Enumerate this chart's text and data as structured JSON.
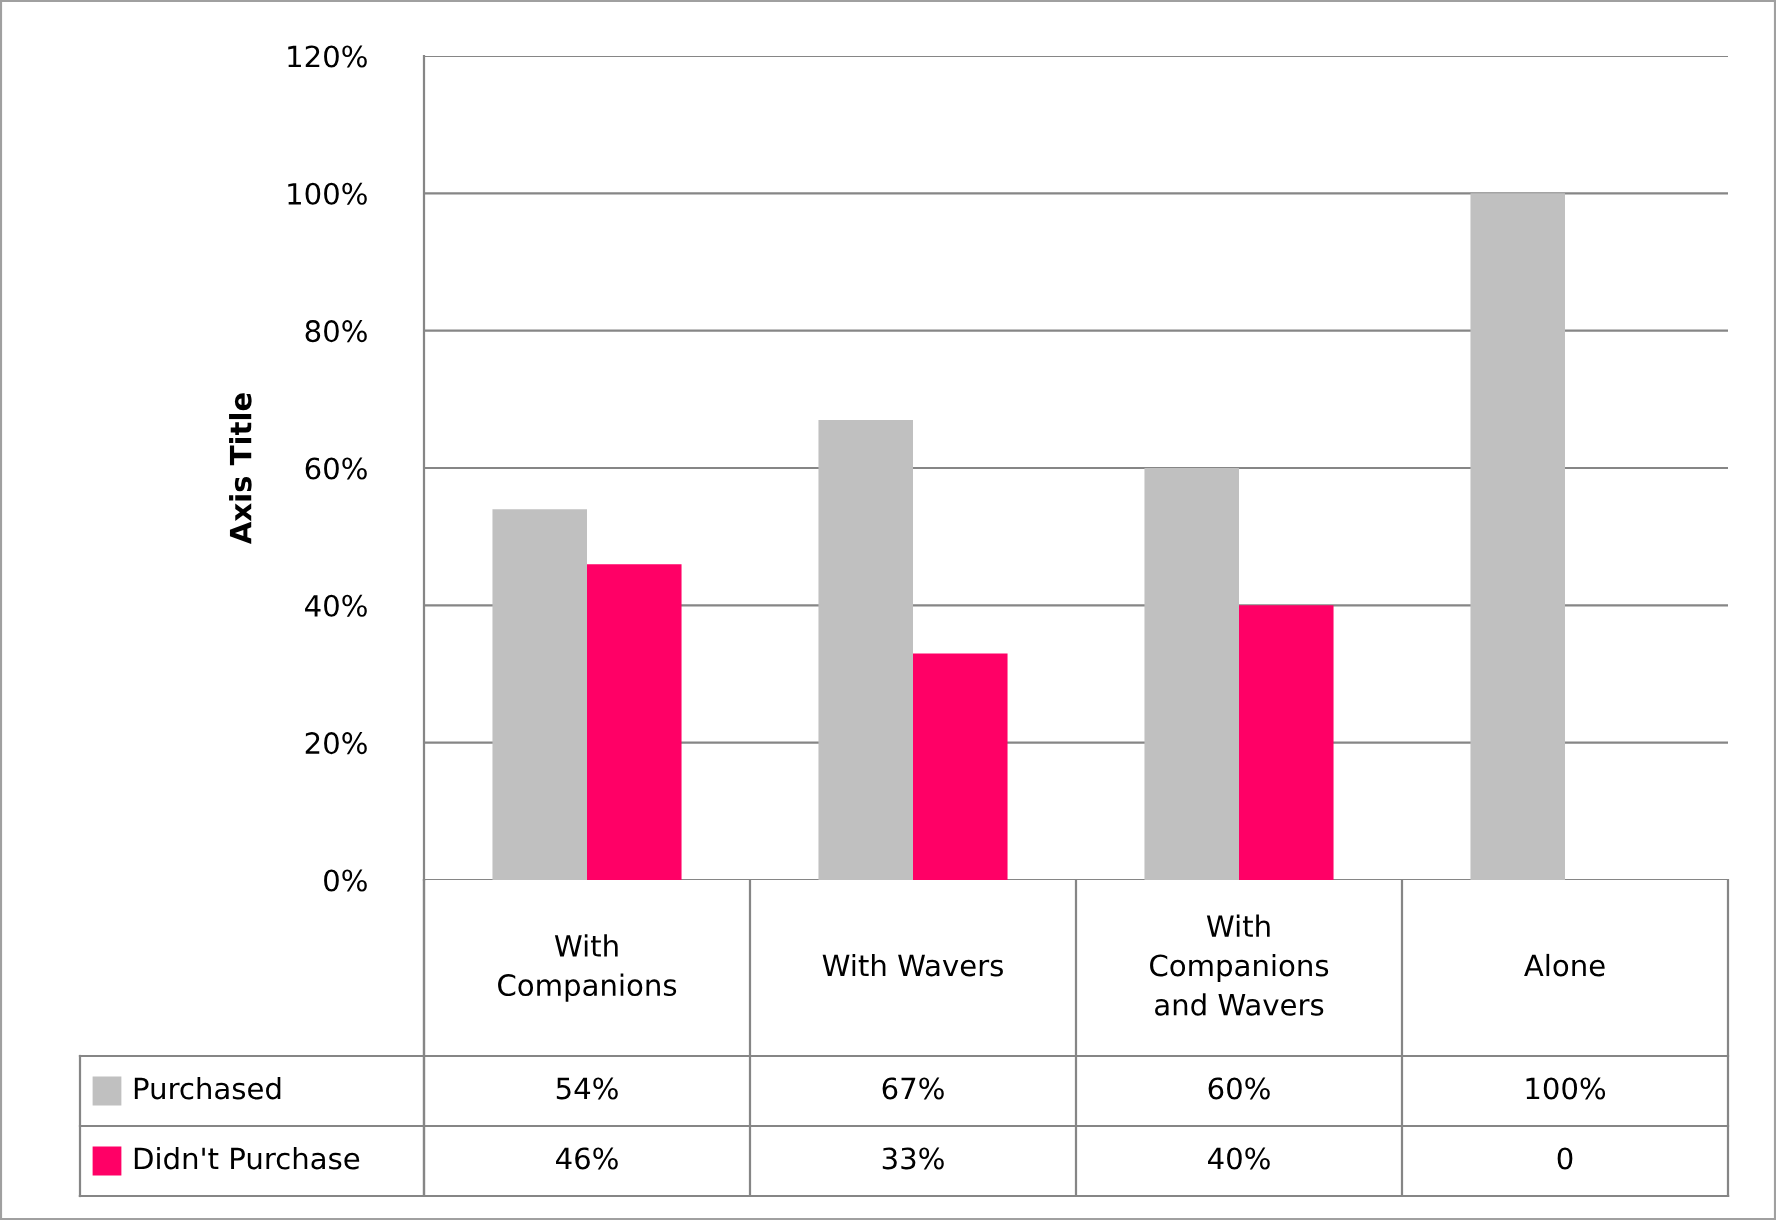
{
  "chart_data": {
    "type": "bar",
    "ylabel": "Axis Title",
    "categories": [
      "With Companions",
      "With Wavers",
      "With Companions and Wavers",
      "Alone"
    ],
    "series": [
      {
        "name": "Purchased",
        "color": "#c0c0c0",
        "values": [
          54,
          67,
          60,
          100
        ],
        "value_labels": [
          "54%",
          "67%",
          "60%",
          "100%"
        ]
      },
      {
        "name": "Didn't Purchase",
        "color": "#ff0066",
        "values": [
          46,
          33,
          40,
          0
        ],
        "value_labels": [
          "46%",
          "33%",
          "40%",
          "0"
        ]
      }
    ],
    "ylim": [
      0,
      120
    ],
    "yticks": [
      {
        "value": 0,
        "label": "0%"
      },
      {
        "value": 20,
        "label": "20%"
      },
      {
        "value": 40,
        "label": "40%"
      },
      {
        "value": 60,
        "label": "60%"
      },
      {
        "value": 80,
        "label": "80%"
      },
      {
        "value": 100,
        "label": "100%"
      },
      {
        "value": 120,
        "label": "120%"
      }
    ],
    "grid": "y",
    "legend": "bottom left"
  }
}
